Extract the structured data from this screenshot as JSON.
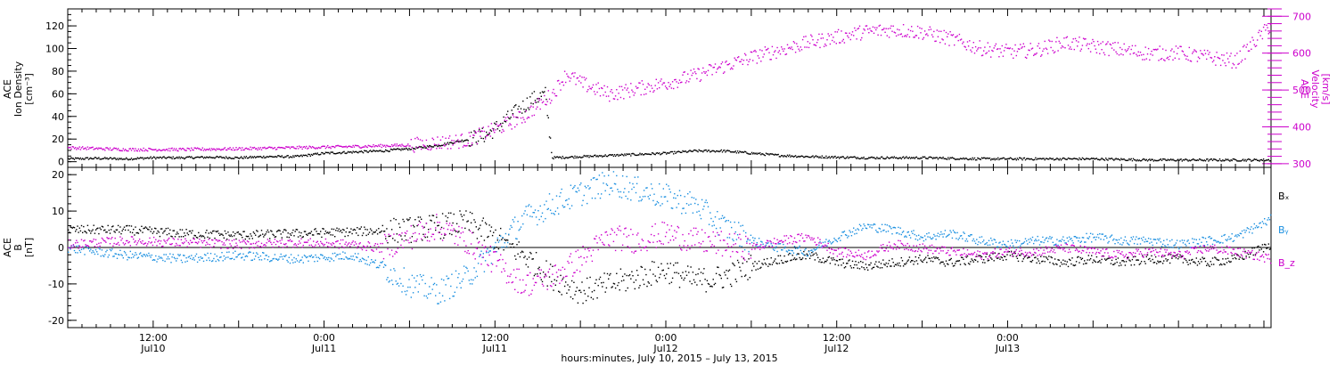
{
  "chart_data": [
    {
      "type": "scatter",
      "panel": "top",
      "ylabel": [
        "ACE",
        "Ion Density",
        "[cm⁻³]"
      ],
      "ylim": [
        -5,
        135
      ],
      "yticks": [
        0,
        20,
        40,
        60,
        80,
        100,
        120
      ],
      "y2label": [
        "ACE",
        "Velocity",
        "[km/s]"
      ],
      "y2lim": [
        290,
        720
      ],
      "y2ticks": [
        300,
        400,
        500,
        600,
        700
      ],
      "xlim_hours": [
        0,
        84.5
      ],
      "series": [
        {
          "axis": "left",
          "color": "#000000",
          "points": [
            [
              0,
              3
            ],
            [
              2,
              3.5
            ],
            [
              4,
              3
            ],
            [
              6,
              4
            ],
            [
              8,
              4
            ],
            [
              10,
              4.5
            ],
            [
              12,
              4
            ],
            [
              14,
              5
            ],
            [
              16,
              5
            ],
            [
              18,
              8
            ],
            [
              20,
              9
            ],
            [
              22,
              10
            ],
            [
              24,
              12
            ],
            [
              26,
              15
            ],
            [
              28,
              20
            ],
            [
              29.5,
              25
            ],
            [
              30.5,
              35
            ],
            [
              31.5,
              45
            ],
            [
              32.5,
              55
            ],
            [
              33.5,
              60
            ],
            [
              34,
              4
            ],
            [
              36,
              5
            ],
            [
              38,
              6
            ],
            [
              40,
              7
            ],
            [
              42,
              8
            ],
            [
              44,
              10
            ],
            [
              46,
              10
            ],
            [
              48,
              8
            ],
            [
              50,
              6
            ],
            [
              52,
              5
            ],
            [
              56,
              4
            ],
            [
              60,
              4
            ],
            [
              64,
              3
            ],
            [
              68,
              3
            ],
            [
              72,
              3
            ],
            [
              76,
              2
            ],
            [
              80,
              2
            ],
            [
              84.5,
              2
            ]
          ]
        },
        {
          "axis": "right",
          "color": "#cc00cc",
          "points": [
            [
              0,
              345
            ],
            [
              4,
              340
            ],
            [
              8,
              340
            ],
            [
              12,
              342
            ],
            [
              16,
              345
            ],
            [
              20,
              348
            ],
            [
              24,
              352
            ],
            [
              28,
              365
            ],
            [
              30,
              395
            ],
            [
              32,
              430
            ],
            [
              34,
              490
            ],
            [
              35,
              545
            ],
            [
              36,
              520
            ],
            [
              38,
              490
            ],
            [
              40,
              505
            ],
            [
              42,
              520
            ],
            [
              44,
              540
            ],
            [
              46,
              565
            ],
            [
              48,
              590
            ],
            [
              50,
              610
            ],
            [
              52,
              630
            ],
            [
              54,
              645
            ],
            [
              56,
              660
            ],
            [
              58,
              665
            ],
            [
              60,
              658
            ],
            [
              62,
              640
            ],
            [
              64,
              615
            ],
            [
              66,
              605
            ],
            [
              68,
              610
            ],
            [
              70,
              630
            ],
            [
              72,
              620
            ],
            [
              74,
              610
            ],
            [
              76,
              600
            ],
            [
              78,
              602
            ],
            [
              80,
              590
            ],
            [
              82,
              580
            ],
            [
              84.5,
              680
            ]
          ]
        }
      ]
    },
    {
      "type": "scatter",
      "panel": "bottom",
      "ylabel": [
        "ACE",
        "B",
        "[nT]"
      ],
      "ylim": [
        -22,
        22
      ],
      "yticks": [
        -20,
        -10,
        0,
        10,
        20
      ],
      "xlim_hours": [
        0,
        84.5
      ],
      "legend": [
        "Bₓ",
        "Bᵧ",
        "B_z"
      ],
      "series": [
        {
          "name": "Bₓ",
          "color": "#000000",
          "points": [
            [
              0,
              5
            ],
            [
              4,
              5
            ],
            [
              8,
              4
            ],
            [
              12,
              3.5
            ],
            [
              16,
              4
            ],
            [
              20,
              4.5
            ],
            [
              24,
              5
            ],
            [
              26,
              6
            ],
            [
              28,
              7
            ],
            [
              30,
              3
            ],
            [
              32,
              -2
            ],
            [
              34,
              -8
            ],
            [
              36,
              -12
            ],
            [
              38,
              -10
            ],
            [
              40,
              -8
            ],
            [
              42,
              -6
            ],
            [
              44,
              -9
            ],
            [
              46,
              -8
            ],
            [
              48,
              -5
            ],
            [
              50,
              -3
            ],
            [
              52,
              -2
            ],
            [
              54,
              -4
            ],
            [
              56,
              -5
            ],
            [
              58,
              -4
            ],
            [
              60,
              -3
            ],
            [
              62,
              -4
            ],
            [
              64,
              -3
            ],
            [
              66,
              -2
            ],
            [
              68,
              -3
            ],
            [
              70,
              -4
            ],
            [
              72,
              -3
            ],
            [
              74,
              -4
            ],
            [
              76,
              -3
            ],
            [
              78,
              -3
            ],
            [
              80,
              -4
            ],
            [
              82,
              -3
            ],
            [
              84.5,
              1
            ]
          ]
        },
        {
          "name": "Bᵧ",
          "color": "#1a8fe0",
          "points": [
            [
              0,
              0
            ],
            [
              4,
              -2
            ],
            [
              8,
              -3
            ],
            [
              12,
              -2
            ],
            [
              16,
              -3
            ],
            [
              20,
              -2
            ],
            [
              22,
              -5
            ],
            [
              24,
              -10
            ],
            [
              26,
              -12
            ],
            [
              28,
              -8
            ],
            [
              30,
              0
            ],
            [
              32,
              8
            ],
            [
              34,
              12
            ],
            [
              36,
              15
            ],
            [
              38,
              18
            ],
            [
              40,
              16
            ],
            [
              42,
              14
            ],
            [
              44,
              12
            ],
            [
              46,
              6
            ],
            [
              48,
              2
            ],
            [
              50,
              0
            ],
            [
              52,
              -1
            ],
            [
              54,
              3
            ],
            [
              56,
              6
            ],
            [
              58,
              5
            ],
            [
              60,
              3
            ],
            [
              62,
              4
            ],
            [
              64,
              2
            ],
            [
              66,
              1
            ],
            [
              68,
              2
            ],
            [
              70,
              2
            ],
            [
              72,
              3
            ],
            [
              74,
              2
            ],
            [
              76,
              2
            ],
            [
              78,
              1
            ],
            [
              80,
              2
            ],
            [
              82,
              3
            ],
            [
              84.5,
              8
            ]
          ]
        },
        {
          "name": "B_z",
          "color": "#cc00cc",
          "points": [
            [
              0,
              1
            ],
            [
              4,
              2
            ],
            [
              8,
              1.5
            ],
            [
              12,
              1
            ],
            [
              16,
              1.5
            ],
            [
              20,
              1
            ],
            [
              22,
              0
            ],
            [
              24,
              3
            ],
            [
              26,
              6
            ],
            [
              28,
              2
            ],
            [
              30,
              -4
            ],
            [
              32,
              -10
            ],
            [
              34,
              -8
            ],
            [
              36,
              -3
            ],
            [
              38,
              3
            ],
            [
              40,
              2
            ],
            [
              42,
              4
            ],
            [
              44,
              2
            ],
            [
              46,
              1
            ],
            [
              48,
              0
            ],
            [
              50,
              2
            ],
            [
              52,
              3
            ],
            [
              54,
              -1
            ],
            [
              56,
              -2
            ],
            [
              58,
              1
            ],
            [
              60,
              0
            ],
            [
              62,
              -1
            ],
            [
              64,
              -2
            ],
            [
              66,
              -1
            ],
            [
              68,
              -1
            ],
            [
              70,
              0
            ],
            [
              72,
              -1
            ],
            [
              74,
              -2
            ],
            [
              76,
              -1
            ],
            [
              78,
              -2
            ],
            [
              80,
              0
            ],
            [
              82,
              -1
            ],
            [
              84.5,
              -3
            ]
          ]
        }
      ]
    }
  ],
  "x_axis": {
    "label": "hours:minutes, July 10, 2015 – July 13, 2015",
    "ticks": [
      {
        "hour": 6,
        "time": "12:00",
        "date": "Jul10"
      },
      {
        "hour": 18,
        "time": "0:00",
        "date": "Jul11"
      },
      {
        "hour": 30,
        "time": "12:00",
        "date": "Jul11"
      },
      {
        "hour": 42,
        "time": "0:00",
        "date": "Jul12"
      },
      {
        "hour": 54,
        "time": "12:00",
        "date": "Jul12"
      },
      {
        "hour": 66,
        "time": "0:00",
        "date": "Jul13"
      }
    ],
    "minor_step_hours": 1,
    "major_step_hours": 6
  },
  "colors": {
    "density": "#000000",
    "velocity": "#cc00cc",
    "bx": "#000000",
    "by": "#1a8fe0",
    "bz": "#cc00cc"
  }
}
